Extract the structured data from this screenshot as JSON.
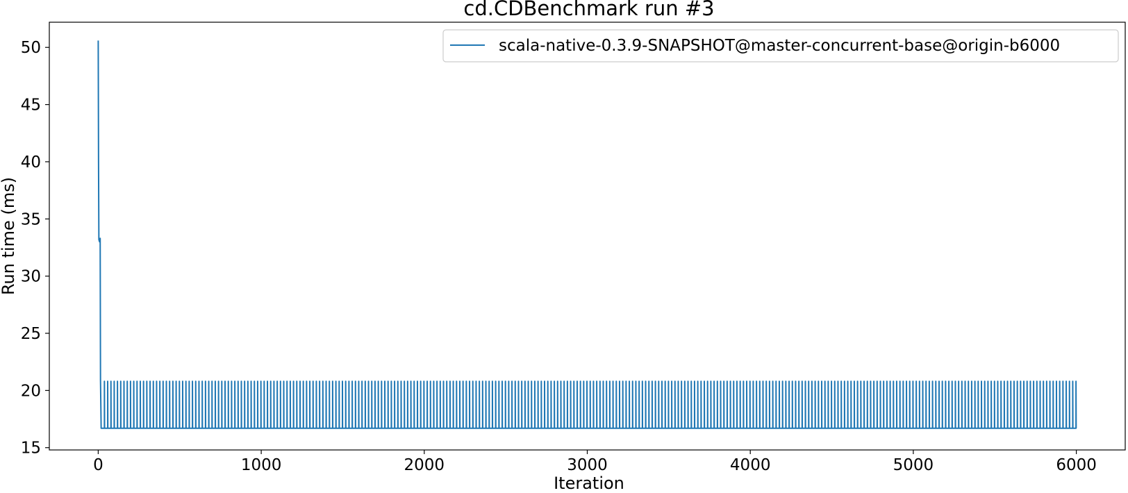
{
  "chart_data": {
    "type": "line",
    "title": "cd.CDBenchmark run #3",
    "xlabel": "Iteration",
    "ylabel": "Run time (ms)",
    "xlim": [
      -300,
      6300
    ],
    "ylim": [
      14.8,
      52.2
    ],
    "xticks": [
      "0",
      "1000",
      "2000",
      "3000",
      "4000",
      "5000",
      "6000"
    ],
    "yticks": [
      "15",
      "20",
      "25",
      "30",
      "35",
      "40",
      "45",
      "50"
    ],
    "grid": false,
    "legend_position": "top-right",
    "series": [
      {
        "name": "scala-native-0.3.9-SNAPSHOT@master-concurrent-base@origin-b6000",
        "color": "#1f77b4",
        "warmup": [
          {
            "x": 0,
            "y": 50.6
          },
          {
            "x": 2,
            "y": 40.0
          },
          {
            "x": 4,
            "y": 33.2
          },
          {
            "x": 8,
            "y": 33.0
          },
          {
            "x": 12,
            "y": 33.3
          },
          {
            "x": 14,
            "y": 20.9
          },
          {
            "x": 18,
            "y": 16.7
          }
        ],
        "steady_state": {
          "x_start": 18,
          "x_end": 6000,
          "period": 20,
          "spike_width": 1,
          "high": 20.8,
          "low": 16.7
        }
      }
    ]
  }
}
